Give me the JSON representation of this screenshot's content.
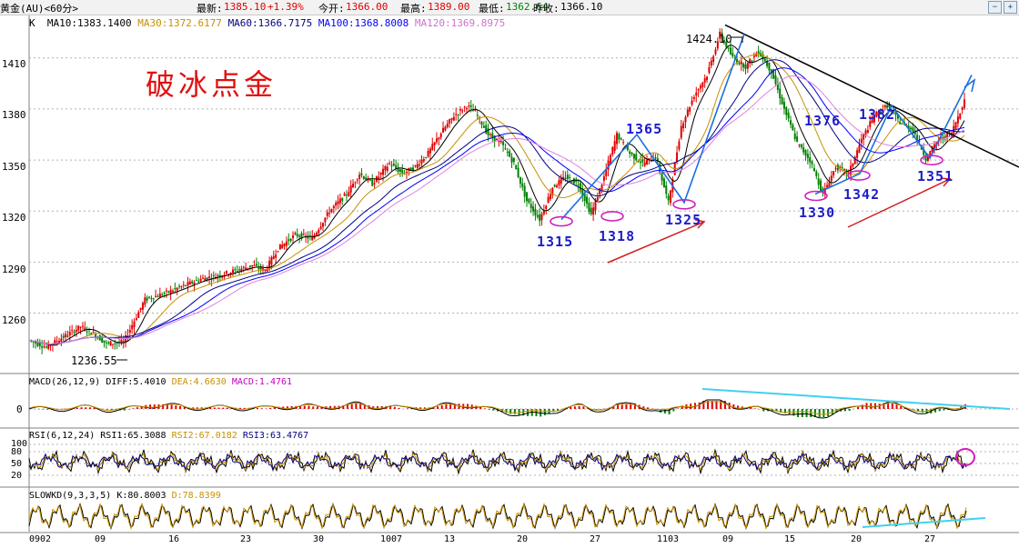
{
  "header": {
    "symbol": "黄金(AU)<60分>",
    "last_label": "最新:",
    "last_value": "1385.10",
    "change": "+1.39%",
    "open_label": "今开:",
    "open_value": "1366.00",
    "high_label": "最高:",
    "high_value": "1389.00",
    "low_label": "最低:",
    "low_value": "1362.64",
    "prev_label": "昨收:",
    "prev_value": "1366.10"
  },
  "ma_legend": {
    "k": "K",
    "ma10": "MA10:1383.1400",
    "ma30": "MA30:1372.6177",
    "ma60": "MA60:1366.7175",
    "ma100": "MA100:1368.8008",
    "ma120": "MA120:1369.8975"
  },
  "overlay_title": "破冰点金",
  "peak_label": "1424.10",
  "low_label": "1236.55",
  "annotations": [
    "1315",
    "1318",
    "1325",
    "1365",
    "1330",
    "1342",
    "1376",
    "1382",
    "1351"
  ],
  "macd_legend": {
    "name": "MACD(26,12,9)",
    "diff": "DIFF:5.4010",
    "dea": "DEA:4.6630",
    "macd": "MACD:1.4761"
  },
  "rsi_legend": {
    "name": "RSI(6,12,24)",
    "rsi1": "RSI1:65.3088",
    "rsi2": "RSI2:67.0182",
    "rsi3": "RSI3:63.4767"
  },
  "kd_legend": {
    "name": "SLOWKD(9,3,3,5)",
    "k": "K:80.8003",
    "d": "D:78.8399"
  },
  "colors": {
    "up": "#e00000",
    "down": "#008000",
    "ma10": "#000000",
    "ma30": "#c89000",
    "ma60": "#000080",
    "ma100": "#0000ff",
    "ma120": "#e080e0",
    "arrow_blue": "#1a6fe0",
    "arrow_red": "#d02020",
    "trend_cyan": "#40d0f0",
    "marker_magenta": "#d020c0"
  },
  "chart_data": {
    "type": "candlestick",
    "title": "",
    "ylim": [
      1225,
      1435
    ],
    "y_ticks": [
      1260,
      1290,
      1320,
      1350,
      1380,
      1410
    ],
    "x_ticks": [
      "0902",
      "09",
      "16",
      "23",
      "30",
      "1007",
      "13",
      "20",
      "27",
      "1103",
      "09",
      "15",
      "20",
      "27"
    ],
    "key_prices": [
      {
        "label": "1236.55",
        "value": 1236.55
      },
      {
        "label": "1315",
        "value": 1315
      },
      {
        "label": "1318",
        "value": 1318
      },
      {
        "label": "1325",
        "value": 1325
      },
      {
        "label": "1365",
        "value": 1365
      },
      {
        "label": "1424.10",
        "value": 1424.1
      },
      {
        "label": "1330",
        "value": 1330
      },
      {
        "label": "1342",
        "value": 1342
      },
      {
        "label": "1376",
        "value": 1376
      },
      {
        "label": "1382",
        "value": 1382
      },
      {
        "label": "1351",
        "value": 1351
      },
      {
        "label": "1385.10",
        "value": 1385.1
      }
    ],
    "price_path": [
      [
        0,
        1244
      ],
      [
        4,
        1240
      ],
      [
        8,
        1246
      ],
      [
        12,
        1252
      ],
      [
        15,
        1248
      ],
      [
        18,
        1242
      ],
      [
        22,
        1243
      ],
      [
        27,
        1268
      ],
      [
        32,
        1272
      ],
      [
        36,
        1276
      ],
      [
        40,
        1280
      ],
      [
        44,
        1282
      ],
      [
        48,
        1285
      ],
      [
        52,
        1288
      ],
      [
        55,
        1285
      ],
      [
        58,
        1298
      ],
      [
        62,
        1306
      ],
      [
        66,
        1304
      ],
      [
        70,
        1320
      ],
      [
        74,
        1330
      ],
      [
        77,
        1342
      ],
      [
        80,
        1336
      ],
      [
        84,
        1348
      ],
      [
        87,
        1342
      ],
      [
        90,
        1346
      ],
      [
        93,
        1354
      ],
      [
        96,
        1366
      ],
      [
        99,
        1376
      ],
      [
        102,
        1382
      ],
      [
        104,
        1378
      ],
      [
        107,
        1365
      ],
      [
        110,
        1360
      ],
      [
        113,
        1348
      ],
      [
        116,
        1326
      ],
      [
        119,
        1315
      ],
      [
        122,
        1334
      ],
      [
        125,
        1340
      ],
      [
        128,
        1336
      ],
      [
        131,
        1318
      ],
      [
        134,
        1340
      ],
      [
        137,
        1365
      ],
      [
        140,
        1354
      ],
      [
        143,
        1348
      ],
      [
        146,
        1352
      ],
      [
        149,
        1325
      ],
      [
        152,
        1370
      ],
      [
        155,
        1388
      ],
      [
        158,
        1400
      ],
      [
        161,
        1424.1
      ],
      [
        164,
        1410
      ],
      [
        167,
        1405
      ],
      [
        170,
        1414
      ],
      [
        173,
        1402
      ],
      [
        176,
        1380
      ],
      [
        179,
        1360
      ],
      [
        182,
        1350
      ],
      [
        185,
        1330
      ],
      [
        188,
        1346
      ],
      [
        191,
        1342
      ],
      [
        194,
        1362
      ],
      [
        197,
        1376
      ],
      [
        200,
        1382
      ],
      [
        203,
        1372
      ],
      [
        206,
        1368
      ],
      [
        209,
        1351
      ],
      [
        212,
        1362
      ],
      [
        215,
        1366
      ],
      [
        218,
        1385.1
      ]
    ],
    "series": [
      {
        "name": "MA10",
        "value": 1383.14
      },
      {
        "name": "MA30",
        "value": 1372.6177
      },
      {
        "name": "MA60",
        "value": 1366.7175
      },
      {
        "name": "MA100",
        "value": 1368.8008
      },
      {
        "name": "MA120",
        "value": 1369.8975
      }
    ],
    "indicators": {
      "macd": {
        "diff": 5.401,
        "dea": 4.663,
        "macd": 1.4761,
        "y_ticks": [
          0
        ]
      },
      "rsi": {
        "rsi1": 65.3088,
        "rsi2": 67.0182,
        "rsi3": 63.4767,
        "y_ticks": [
          20,
          50,
          80,
          100
        ]
      },
      "slowkd": {
        "k": 80.8003,
        "d": 78.8399
      }
    }
  }
}
